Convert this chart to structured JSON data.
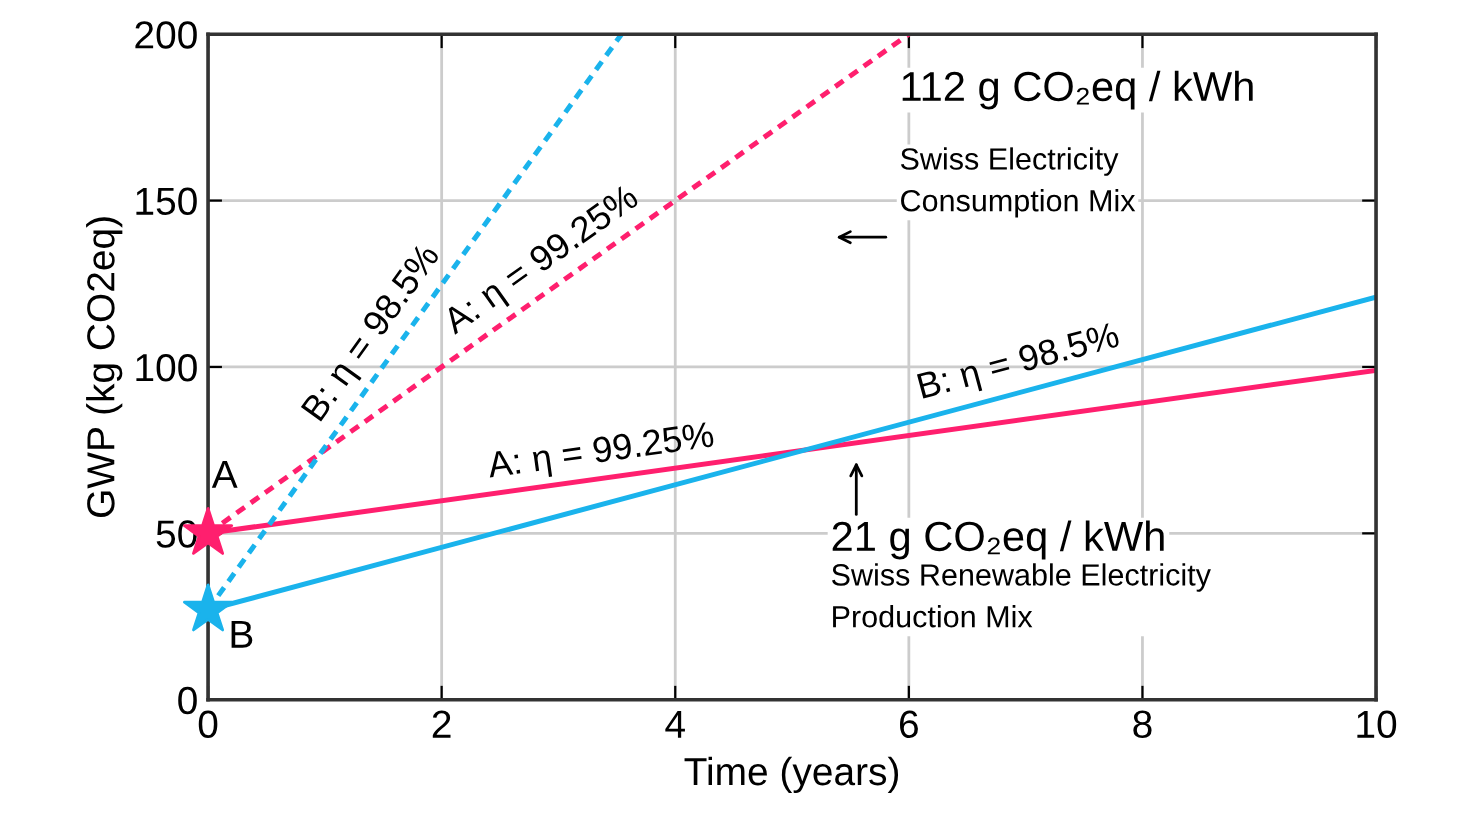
{
  "chart_data": {
    "type": "line",
    "xlabel": "Time (years)",
    "ylabel": "GWP (kg CO2eq)",
    "xlim": [
      0,
      10
    ],
    "ylim": [
      0,
      200
    ],
    "xticks": [
      0,
      2,
      4,
      6,
      8,
      10
    ],
    "yticks": [
      0,
      50,
      100,
      150,
      200
    ],
    "grid": true,
    "series": [
      {
        "line_style": "solid",
        "color": "#ff1f6e",
        "x": [
          0,
          10
        ],
        "values": [
          50,
          99
        ]
      },
      {
        "line_style": "solid",
        "color": "#1ab3ec",
        "x": [
          0,
          10
        ],
        "values": [
          27,
          121
        ]
      },
      {
        "line_style": "dotted",
        "color": "#ff1f6e",
        "x": [
          0,
          6
        ],
        "values": [
          50,
          200
        ]
      },
      {
        "line_style": "dotted",
        "color": "#1ab3ec",
        "x": [
          0,
          3.54
        ],
        "values": [
          27,
          200
        ]
      },
      {
        "type": "scatter",
        "marker": "star",
        "color": "#ff1f6e",
        "x": [
          0
        ],
        "values": [
          50
        ]
      },
      {
        "type": "scatter",
        "marker": "star",
        "color": "#1ab3ec",
        "x": [
          0
        ],
        "values": [
          27
        ]
      }
    ],
    "annotations": [
      {
        "text": "A: η = 99.25%",
        "x": 3.4,
        "y": 66
      },
      {
        "text": "B: η = 98.5%",
        "x": 7,
        "y": 93
      },
      {
        "text": "A: η = 99.25%",
        "x": 3,
        "y": 125
      },
      {
        "text": "B: η = 98.5%",
        "x": 1.6,
        "y": 105
      },
      {
        "text": "A",
        "x": 0,
        "y": 50
      },
      {
        "text": "B",
        "x": 0,
        "y": 27
      },
      "112 g CO₂eq / kWh",
      "Swiss Electricity\nConsumption Mix",
      "21 g CO₂eq / kWh",
      "Swiss Renewable Electricity\nProduction Mix"
    ]
  }
}
